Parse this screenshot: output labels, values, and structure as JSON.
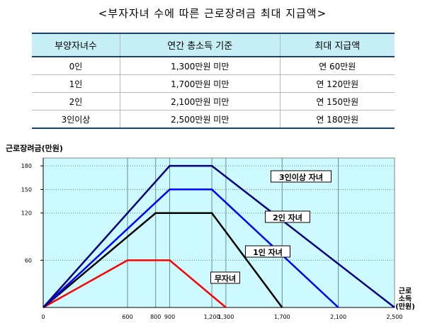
{
  "title": "<부자자녀 수에 따른 근로장려금 최대 지급액>",
  "table": {
    "headers": [
      "부양자녀수",
      "연간 총소득 기준",
      "최대 지급액"
    ],
    "rows": [
      [
        "0인",
        "1,300만원 미만",
        "연  60만원"
      ],
      [
        "1인",
        "1,700만원 미만",
        "연 120만원"
      ],
      [
        "2인",
        "2,100만원 미만",
        "연 150만원"
      ],
      [
        "3인이상",
        "2,500만원 미만",
        "연 180만원"
      ]
    ]
  },
  "colors": {
    "plot_bg": "#ccfafe",
    "grid": "#6b8e8e",
    "무자녀": "#ff0000",
    "1인 자녀": "#000000",
    "2인 자녀": "#0000ff",
    "3인이상 자녀": "#000080",
    "table_header": "#c6f0f6"
  },
  "chart_data": {
    "type": "line",
    "ylabel": "근로장려금(만원)",
    "xlabel": "근로소득(만원)",
    "xlabel_lines": [
      "근로",
      "소득",
      "(만원)"
    ],
    "xlim": [
      0,
      2500
    ],
    "ylim": [
      0,
      190
    ],
    "y_ticks": [
      60,
      120,
      150,
      180
    ],
    "x_ticks": [
      {
        "value": 0,
        "label": "0"
      },
      {
        "value": 600,
        "label": "600"
      },
      {
        "value": 800,
        "label": "800"
      },
      {
        "value": 900,
        "label": "900"
      },
      {
        "value": 1200,
        "label": "1,200"
      },
      {
        "value": 1300,
        "label": "1,300"
      },
      {
        "value": 1700,
        "label": "1,700"
      },
      {
        "value": 2100,
        "label": "2,100"
      },
      {
        "value": 2500,
        "label": "2,500"
      }
    ],
    "grid": true,
    "series": [
      {
        "name": "무자녀",
        "color_key": "무자녀",
        "x": [
          0,
          600,
          900,
          1300
        ],
        "y": [
          0,
          60,
          60,
          0
        ]
      },
      {
        "name": "1인 자녀",
        "color_key": "1인 자녀",
        "x": [
          0,
          800,
          1200,
          1700
        ],
        "y": [
          0,
          120,
          120,
          0
        ]
      },
      {
        "name": "2인 자녀",
        "color_key": "2인 자녀",
        "x": [
          0,
          900,
          1200,
          2100
        ],
        "y": [
          0,
          150,
          150,
          0
        ]
      },
      {
        "name": "3인이상 자녀",
        "color_key": "3인이상 자녀",
        "x": [
          0,
          900,
          1200,
          2500
        ],
        "y": [
          0,
          180,
          180,
          0
        ]
      }
    ]
  }
}
